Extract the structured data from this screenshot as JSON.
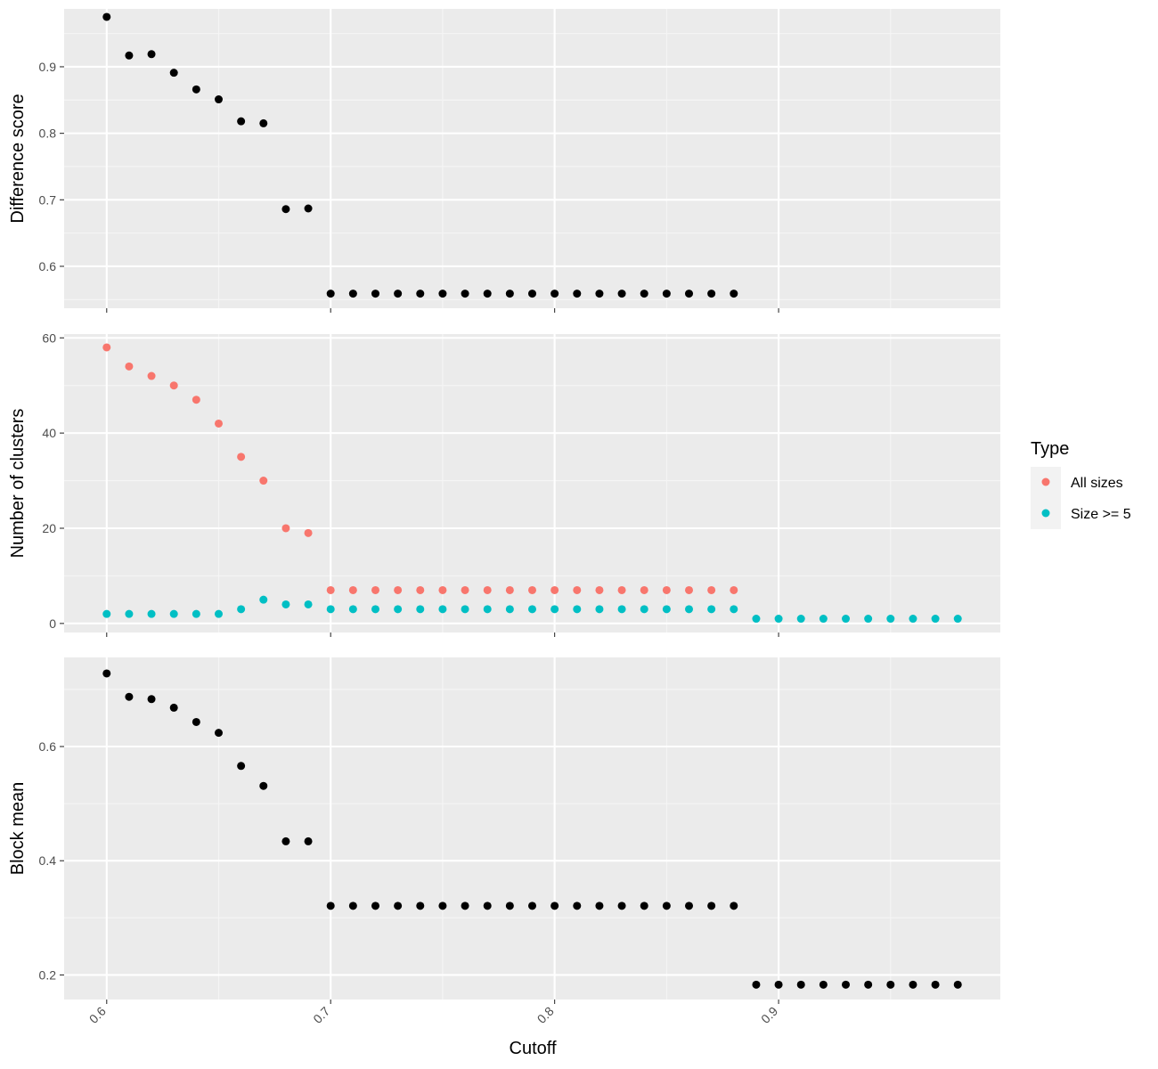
{
  "chart_data": [
    {
      "type": "scatter",
      "ylabel": "Difference score",
      "yticks": [
        0.6,
        0.7,
        0.8,
        0.9
      ],
      "ylim": [
        0.537,
        0.987
      ],
      "xlim": [
        0.581,
        0.999
      ],
      "series": [
        {
          "color": "#000000",
          "x": [
            0.6,
            0.61,
            0.62,
            0.63,
            0.64,
            0.65,
            0.66,
            0.67,
            0.68,
            0.69,
            0.7,
            0.71,
            0.72,
            0.73,
            0.74,
            0.75,
            0.76,
            0.77,
            0.78,
            0.79,
            0.8,
            0.81,
            0.82,
            0.83,
            0.84,
            0.85,
            0.86,
            0.87,
            0.88
          ],
          "y": [
            0.975,
            0.917,
            0.919,
            0.891,
            0.866,
            0.851,
            0.818,
            0.815,
            0.686,
            0.687,
            0.559,
            0.559,
            0.559,
            0.559,
            0.559,
            0.559,
            0.559,
            0.559,
            0.559,
            0.559,
            0.559,
            0.559,
            0.559,
            0.559,
            0.559,
            0.559,
            0.559,
            0.559,
            0.559
          ]
        }
      ]
    },
    {
      "type": "scatter",
      "ylabel": "Number of clusters",
      "yticks": [
        0,
        20,
        40,
        60
      ],
      "ylim": [
        -1.9,
        60.8
      ],
      "xlim": [
        0.581,
        0.999
      ],
      "series": [
        {
          "name": "All sizes",
          "color": "#F8766D",
          "x": [
            0.6,
            0.61,
            0.62,
            0.63,
            0.64,
            0.65,
            0.66,
            0.67,
            0.68,
            0.69,
            0.7,
            0.71,
            0.72,
            0.73,
            0.74,
            0.75,
            0.76,
            0.77,
            0.78,
            0.79,
            0.8,
            0.81,
            0.82,
            0.83,
            0.84,
            0.85,
            0.86,
            0.87,
            0.88
          ],
          "y": [
            58,
            54,
            52,
            50,
            47,
            42,
            35,
            30,
            20,
            19,
            7,
            7,
            7,
            7,
            7,
            7,
            7,
            7,
            7,
            7,
            7,
            7,
            7,
            7,
            7,
            7,
            7,
            7,
            7
          ]
        },
        {
          "name": "Size >= 5",
          "color": "#00BFC4",
          "x": [
            0.6,
            0.61,
            0.62,
            0.63,
            0.64,
            0.65,
            0.66,
            0.67,
            0.68,
            0.69,
            0.7,
            0.71,
            0.72,
            0.73,
            0.74,
            0.75,
            0.76,
            0.77,
            0.78,
            0.79,
            0.8,
            0.81,
            0.82,
            0.83,
            0.84,
            0.85,
            0.86,
            0.87,
            0.88,
            0.89,
            0.9,
            0.91,
            0.92,
            0.93,
            0.94,
            0.95,
            0.96,
            0.97,
            0.98
          ],
          "y": [
            2,
            2,
            2,
            2,
            2,
            2,
            3,
            5,
            4,
            4,
            3,
            3,
            3,
            3,
            3,
            3,
            3,
            3,
            3,
            3,
            3,
            3,
            3,
            3,
            3,
            3,
            3,
            3,
            3,
            1,
            1,
            1,
            1,
            1,
            1,
            1,
            1,
            1,
            1
          ]
        }
      ]
    },
    {
      "type": "scatter",
      "ylabel": "Block mean",
      "xlabel": "Cutoff",
      "yticks": [
        0.2,
        0.4,
        0.6
      ],
      "ylim": [
        0.157,
        0.756
      ],
      "xlim": [
        0.581,
        0.999
      ],
      "xticks": [
        0.6,
        0.7,
        0.8,
        0.9
      ],
      "series": [
        {
          "color": "#000000",
          "x": [
            0.6,
            0.61,
            0.62,
            0.63,
            0.64,
            0.65,
            0.66,
            0.67,
            0.68,
            0.69,
            0.7,
            0.71,
            0.72,
            0.73,
            0.74,
            0.75,
            0.76,
            0.77,
            0.78,
            0.79,
            0.8,
            0.81,
            0.82,
            0.83,
            0.84,
            0.85,
            0.86,
            0.87,
            0.88,
            0.89,
            0.9,
            0.91,
            0.92,
            0.93,
            0.94,
            0.95,
            0.96,
            0.97,
            0.98
          ],
          "y": [
            0.728,
            0.687,
            0.683,
            0.668,
            0.643,
            0.624,
            0.566,
            0.531,
            0.434,
            0.434,
            0.321,
            0.321,
            0.321,
            0.321,
            0.321,
            0.321,
            0.321,
            0.321,
            0.321,
            0.321,
            0.321,
            0.321,
            0.321,
            0.321,
            0.321,
            0.321,
            0.321,
            0.321,
            0.321,
            0.183,
            0.183,
            0.183,
            0.183,
            0.183,
            0.183,
            0.183,
            0.183,
            0.183,
            0.183
          ]
        }
      ]
    }
  ],
  "legend": {
    "title": "Type",
    "items": [
      {
        "label": "All sizes",
        "color": "#F8766D"
      },
      {
        "label": "Size >= 5",
        "color": "#00BFC4"
      }
    ]
  },
  "colors": {
    "panel_background": "#EBEBEB",
    "grid_major": "#FFFFFF",
    "grid_minor": "#F5F5F5",
    "tick_text": "#4D4D4D",
    "tick_mark": "#333333"
  }
}
